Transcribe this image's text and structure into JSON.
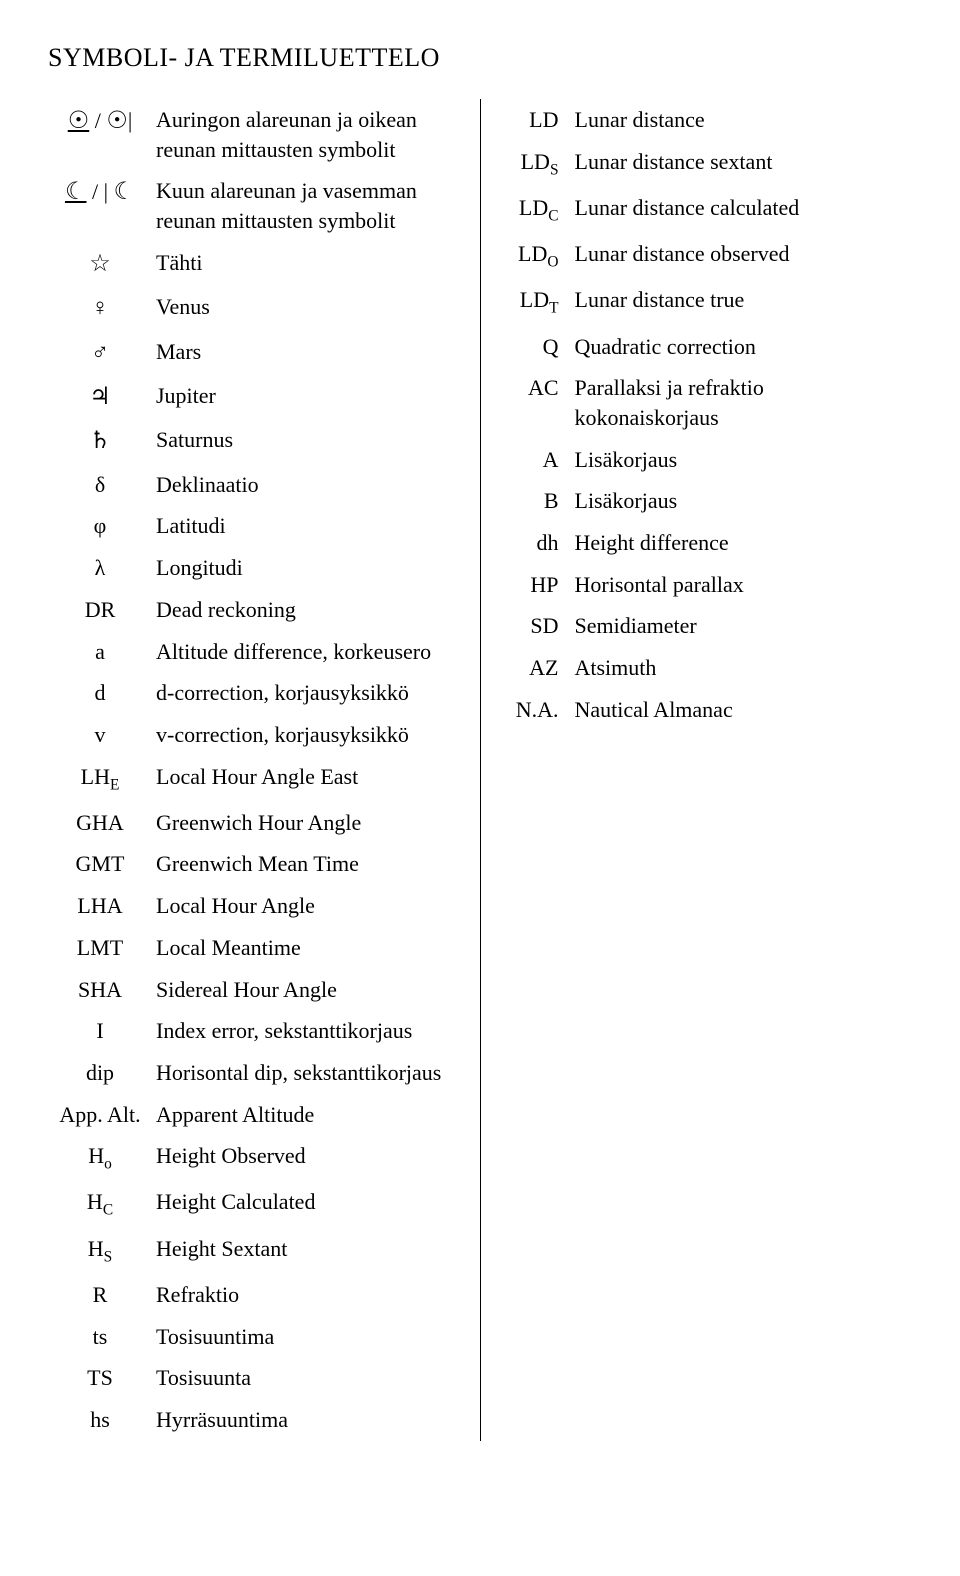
{
  "title": "SYMBOLI- JA TERMILUETTELO",
  "left": [
    {
      "sym": "<span class='underline astro'>☉</span> / <span class='astro'>☉</span>|",
      "desc": "Auringon alareunan ja oikean reunan mittausten symbolit"
    },
    {
      "sym": "<span class='underline astro'>☾</span> /  | <span class='astro'>☾</span>",
      "desc": "Kuun alareunan ja vasemman reunan mittausten symbolit"
    },
    {
      "sym": "<span class='astro'>☆</span>",
      "desc": "Tähti"
    },
    {
      "sym": "<span class='astro'>♀</span>",
      "desc": "Venus"
    },
    {
      "sym": "<span class='astro'>♂</span>",
      "desc": "Mars"
    },
    {
      "sym": "<span class='astro'>♃</span>",
      "desc": "Jupiter"
    },
    {
      "sym": "<span class='astro'>♄</span>",
      "desc": "Saturnus"
    },
    {
      "sym": "δ",
      "desc": "Deklinaatio"
    },
    {
      "sym": "φ",
      "desc": "Latitudi"
    },
    {
      "sym": "λ",
      "desc": "Longitudi"
    },
    {
      "sym": "DR",
      "desc": "Dead reckoning"
    },
    {
      "sym": "a",
      "desc": "Altitude difference, korkeusero"
    },
    {
      "sym": "d",
      "desc": "d-correction, korjausyksikkö"
    },
    {
      "sym": "v",
      "desc": "v-correction, korjausyksikkö"
    },
    {
      "sym": "LH<sub>E</sub>",
      "desc": "Local Hour Angle East"
    },
    {
      "sym": "GHA",
      "desc": "Greenwich Hour Angle"
    },
    {
      "sym": "GMT",
      "desc": "Greenwich Mean Time"
    },
    {
      "sym": "LHA",
      "desc": "Local Hour Angle"
    },
    {
      "sym": "LMT",
      "desc": "Local Meantime"
    },
    {
      "sym": "SHA",
      "desc": "Sidereal Hour Angle"
    },
    {
      "sym": "I",
      "desc": "Index error, sekstanttikorjaus"
    },
    {
      "sym": "dip",
      "desc": "Horisontal dip, sekstanttikorjaus"
    },
    {
      "sym": "App. Alt.",
      "desc": "Apparent Altitude"
    },
    {
      "sym": "H<sub>o</sub>",
      "desc": "Height Observed"
    },
    {
      "sym": "H<sub>C</sub>",
      "desc": "Height Calculated"
    },
    {
      "sym": "H<sub>S</sub>",
      "desc": "Height Sextant"
    },
    {
      "sym": "R",
      "desc": "Refraktio"
    },
    {
      "sym": "ts",
      "desc": "Tosisuuntima"
    },
    {
      "sym": "TS",
      "desc": "Tosisuunta"
    },
    {
      "sym": "hs",
      "desc": "Hyrräsuuntima"
    }
  ],
  "right": [
    {
      "sym": "LD",
      "desc": "Lunar distance"
    },
    {
      "sym": "LD<sub>S</sub>",
      "desc": "Lunar distance sextant"
    },
    {
      "sym": "LD<sub>C</sub>",
      "desc": "Lunar distance calculated"
    },
    {
      "sym": "LD<sub>O</sub>",
      "desc": "Lunar distance observed"
    },
    {
      "sym": "LD<sub>T</sub>",
      "desc": "Lunar distance true"
    },
    {
      "sym": "Q",
      "desc": "Quadratic correction"
    },
    {
      "sym": "AC",
      "desc": "Parallaksi ja refraktio kokonaiskorjaus"
    },
    {
      "sym": "A",
      "desc": "Lisäkorjaus"
    },
    {
      "sym": "B",
      "desc": "Lisäkorjaus"
    },
    {
      "sym": "dh",
      "desc": "Height difference"
    },
    {
      "sym": "HP",
      "desc": "Horisontal parallax"
    },
    {
      "sym": "SD",
      "desc": "Semidiameter"
    },
    {
      "sym": "AZ",
      "desc": "Atsimuth"
    },
    {
      "sym": "N.A.",
      "desc": "Nautical Almanac"
    }
  ]
}
